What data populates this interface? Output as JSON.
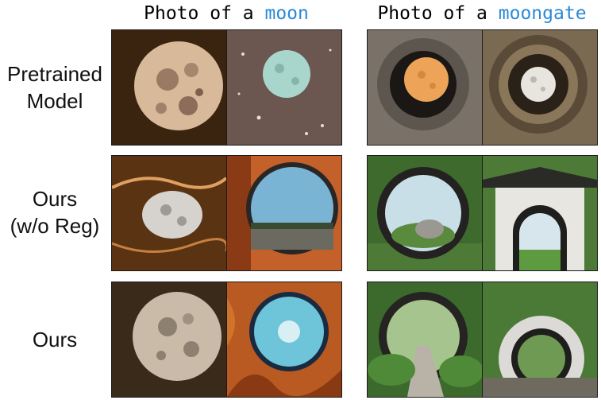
{
  "columns": [
    {
      "prefix": "Photo of a ",
      "keyword": "moon"
    },
    {
      "prefix": "Photo of a ",
      "keyword": "moongate"
    }
  ],
  "rows": [
    {
      "line1": "Pretrained",
      "line2": "Model"
    },
    {
      "line1": "Ours",
      "line2": "(w/o Reg)"
    },
    {
      "line1": "Ours",
      "line2": ""
    }
  ],
  "colors": {
    "keyword": "#2a8ad6"
  }
}
